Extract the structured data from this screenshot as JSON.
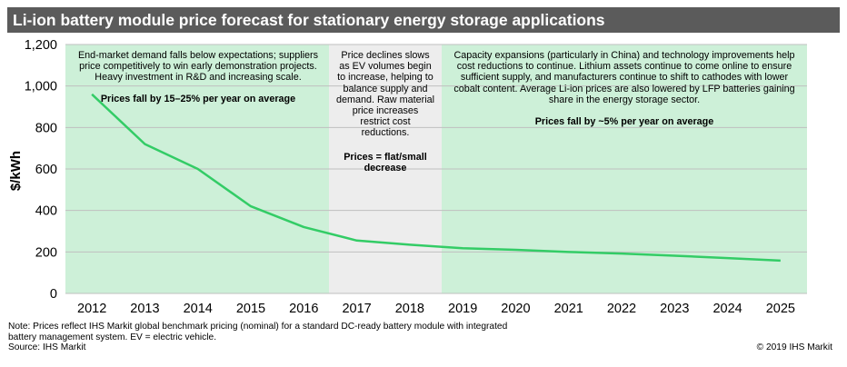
{
  "title": "Li-ion battery module price forecast for stationary energy storage applications",
  "chart_data": {
    "type": "line",
    "title": "Li-ion battery module price forecast for stationary energy storage applications",
    "ylabel": "$/kWh",
    "xlabel": "",
    "ylim": [
      0,
      1200
    ],
    "yticks": [
      0,
      200,
      400,
      600,
      800,
      1000,
      1200
    ],
    "ytick_labels": [
      "0",
      "200",
      "400",
      "600",
      "800",
      "1,000",
      "1,200"
    ],
    "categories": [
      "2012",
      "2013",
      "2014",
      "2015",
      "2016",
      "2017",
      "2018",
      "2019",
      "2020",
      "2021",
      "2022",
      "2023",
      "2024",
      "2025"
    ],
    "series": [
      {
        "name": "",
        "values": [
          960,
          720,
          600,
          420,
          320,
          255,
          235,
          218,
          210,
          200,
          192,
          182,
          170,
          158
        ]
      }
    ],
    "grid": true,
    "line_color": "#33cc66",
    "regions": [
      {
        "from": "2012",
        "to": "2016",
        "color": "#cdf0d8",
        "text": [
          "End-market demand falls below expectations; suppliers",
          "price competitively to win early demonstration projects.",
          "Heavy investment in R&D and increasing scale."
        ],
        "highlight": "Prices fall by 15–25% per year on average"
      },
      {
        "from": "2017",
        "to": "2018",
        "color": "#ededed",
        "text": [
          "Price declines slows",
          "as EV volumes begin",
          "to increase, helping to",
          "balance supply and",
          "demand. Raw material",
          "price increases",
          "restrict cost",
          "reductions."
        ],
        "highlight": [
          "Prices = flat/small",
          "decrease"
        ]
      },
      {
        "from": "2019",
        "to": "2025",
        "color": "#cdf0d8",
        "text": [
          "Capacity expansions (particularly in China) and technology improvements help",
          "cost reductions to continue. Lithium assets continue to come online to ensure",
          "sufficient supply, and manufacturers continue to shift to cathodes with lower",
          "cobalt content. Average Li-ion prices are also lowered by LFP batteries gaining",
          "share in the energy storage sector."
        ],
        "highlight": "Prices fall by ~5% per year on average"
      }
    ]
  },
  "footer": {
    "note_lines": [
      "Note: Prices reflect IHS Markit global benchmark pricing (nominal) for a standard DC-ready battery module with integrated",
      "battery management system. EV = electric vehicle."
    ],
    "source": "Source: IHS Markit",
    "copyright": "© 2019 IHS Markit"
  }
}
